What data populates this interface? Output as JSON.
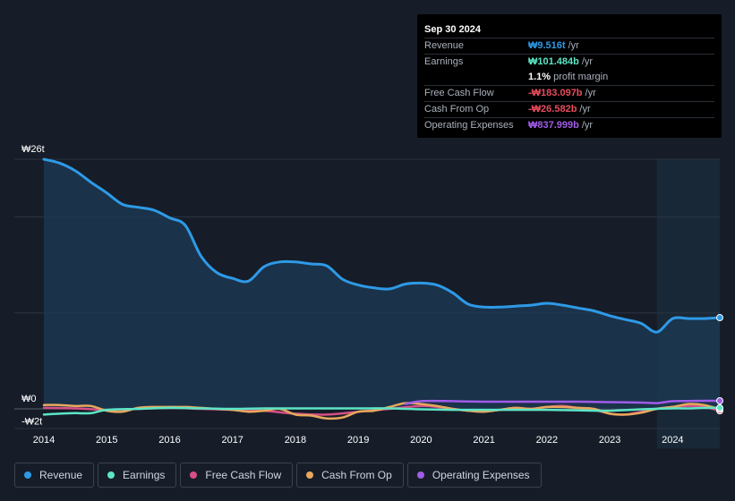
{
  "tooltip": {
    "date": "Sep 30 2024",
    "rows": [
      {
        "label": "Revenue",
        "value": "₩9.516t",
        "unit": "/yr",
        "color": "#2e9ae6"
      },
      {
        "label": "Earnings",
        "value": "₩101.484b",
        "unit": "/yr",
        "color": "#5ce6c6"
      },
      {
        "label": "",
        "value": "1.1%",
        "unit": "profit margin",
        "color": "#ffffff"
      },
      {
        "label": "Free Cash Flow",
        "value": "-₩183.097b",
        "unit": "/yr",
        "color": "#e84c5e"
      },
      {
        "label": "Cash From Op",
        "value": "-₩26.582b",
        "unit": "/yr",
        "color": "#e84c5e"
      },
      {
        "label": "Operating Expenses",
        "value": "₩837.999b",
        "unit": "/yr",
        "color": "#a05ce8"
      }
    ]
  },
  "legend": [
    {
      "label": "Revenue",
      "color": "#2e9ae6"
    },
    {
      "label": "Earnings",
      "color": "#5ce6c6"
    },
    {
      "label": "Free Cash Flow",
      "color": "#d64f86"
    },
    {
      "label": "Cash From Op",
      "color": "#e8a85c"
    },
    {
      "label": "Operating Expenses",
      "color": "#a05ce8"
    }
  ],
  "chart_data": {
    "type": "area",
    "title": "",
    "xlabel": "",
    "ylabel": "",
    "ylim": [
      -2,
      26
    ],
    "xlim": [
      2014,
      2024.75
    ],
    "y_axis_labels": [
      "₩26t",
      "₩0",
      "-₩2t"
    ],
    "y_axis_values": [
      26,
      0,
      -2
    ],
    "x_ticks": [
      "2014",
      "2015",
      "2016",
      "2017",
      "2018",
      "2019",
      "2020",
      "2021",
      "2022",
      "2023",
      "2024"
    ],
    "x_tick_values": [
      2014,
      2015,
      2016,
      2017,
      2018,
      2019,
      2020,
      2021,
      2022,
      2023,
      2024
    ],
    "gridlines_y": [
      26,
      20,
      10,
      0
    ],
    "forecast_start": 2023.75,
    "series": [
      {
        "name": "Revenue",
        "color": "#2e9ae6",
        "x": [
          2014,
          2014.25,
          2014.5,
          2014.75,
          2015,
          2015.25,
          2015.5,
          2015.75,
          2016,
          2016.25,
          2016.5,
          2016.75,
          2017,
          2017.25,
          2017.5,
          2017.75,
          2018,
          2018.25,
          2018.5,
          2018.75,
          2019,
          2019.25,
          2019.5,
          2019.75,
          2020,
          2020.25,
          2020.5,
          2020.75,
          2021,
          2021.25,
          2021.5,
          2021.75,
          2022,
          2022.25,
          2022.5,
          2022.75,
          2023,
          2023.25,
          2023.5,
          2023.75,
          2024,
          2024.25,
          2024.5,
          2024.75
        ],
        "values": [
          26.0,
          25.6,
          24.8,
          23.6,
          22.5,
          21.3,
          21.0,
          20.7,
          19.9,
          19.1,
          15.9,
          14.2,
          13.6,
          13.3,
          14.8,
          15.3,
          15.3,
          15.1,
          14.9,
          13.5,
          12.9,
          12.6,
          12.5,
          13.0,
          13.1,
          12.9,
          12.1,
          10.9,
          10.6,
          10.6,
          10.7,
          10.8,
          11.0,
          10.8,
          10.5,
          10.2,
          9.7,
          9.3,
          8.9,
          8.0,
          9.4,
          9.4,
          9.4,
          9.5
        ]
      },
      {
        "name": "Earnings",
        "color": "#5ce6c6",
        "x": [
          2014,
          2014.25,
          2014.5,
          2014.75,
          2015,
          2015.5,
          2016,
          2016.5,
          2017,
          2017.5,
          2018,
          2018.5,
          2019,
          2019.5,
          2020,
          2020.5,
          2021,
          2021.5,
          2022,
          2022.5,
          2023,
          2023.5,
          2024,
          2024.25,
          2024.5,
          2024.75
        ],
        "values": [
          -0.6,
          -0.5,
          -0.45,
          -0.45,
          -0.1,
          0.0,
          0.1,
          0.05,
          0.0,
          0.05,
          0.05,
          0.05,
          0.05,
          0.05,
          -0.05,
          -0.1,
          -0.1,
          -0.1,
          -0.1,
          -0.15,
          -0.2,
          -0.05,
          0.05,
          0.05,
          0.1,
          0.1
        ]
      },
      {
        "name": "Free Cash Flow",
        "color": "#d64f86",
        "x": [
          2014,
          2014.5,
          2015,
          2015.5,
          2016,
          2016.5,
          2017,
          2017.5,
          2018,
          2018.5,
          2019,
          2019.5,
          2020,
          2020.25,
          2020.5,
          2020.75,
          2021,
          2021.25,
          2021.5,
          2021.75,
          2022,
          2022.25,
          2022.5,
          2022.75,
          2023,
          2023.25,
          2023.5,
          2023.75,
          2024,
          2024.25,
          2024.5,
          2024.75
        ],
        "values": [
          0.1,
          0.05,
          -0.1,
          0.0,
          0.1,
          0.0,
          -0.1,
          -0.2,
          -0.5,
          -0.6,
          -0.3,
          0.0,
          0.3,
          0.2,
          0.0,
          -0.2,
          -0.3,
          -0.1,
          0.1,
          0.0,
          0.2,
          0.3,
          0.1,
          -0.1,
          -0.5,
          -0.6,
          -0.3,
          0.0,
          0.2,
          0.3,
          0.2,
          -0.2
        ]
      },
      {
        "name": "Cash From Op",
        "color": "#e8a85c",
        "x": [
          2014,
          2014.25,
          2014.5,
          2014.75,
          2015,
          2015.25,
          2015.5,
          2015.75,
          2016,
          2016.25,
          2016.5,
          2016.75,
          2017,
          2017.25,
          2017.5,
          2017.75,
          2018,
          2018.25,
          2018.5,
          2018.75,
          2019,
          2019.25,
          2019.5,
          2019.75,
          2020,
          2020.25,
          2020.5,
          2020.75,
          2021,
          2021.25,
          2021.5,
          2021.75,
          2022,
          2022.25,
          2022.5,
          2022.75,
          2023,
          2023.25,
          2023.5,
          2023.75,
          2024,
          2024.25,
          2024.5,
          2024.75
        ],
        "values": [
          0.4,
          0.4,
          0.3,
          0.3,
          -0.2,
          -0.3,
          0.1,
          0.2,
          0.2,
          0.2,
          0.1,
          0.0,
          -0.1,
          -0.3,
          -0.2,
          0.0,
          -0.6,
          -0.7,
          -1.0,
          -0.9,
          -0.3,
          -0.2,
          0.2,
          0.6,
          0.5,
          0.3,
          0.0,
          -0.2,
          -0.3,
          -0.1,
          0.1,
          0.0,
          0.2,
          0.2,
          0.1,
          0.0,
          -0.5,
          -0.6,
          -0.4,
          0.0,
          0.2,
          0.5,
          0.4,
          -0.03
        ]
      },
      {
        "name": "Operating Expenses",
        "color": "#a05ce8",
        "x": [
          2019.75,
          2020,
          2020.5,
          2021,
          2021.5,
          2022,
          2022.5,
          2023,
          2023.5,
          2023.75,
          2024,
          2024.25,
          2024.5,
          2024.75
        ],
        "values": [
          0.5,
          0.8,
          0.8,
          0.75,
          0.75,
          0.75,
          0.75,
          0.7,
          0.65,
          0.6,
          0.8,
          0.82,
          0.84,
          0.84
        ]
      }
    ]
  }
}
